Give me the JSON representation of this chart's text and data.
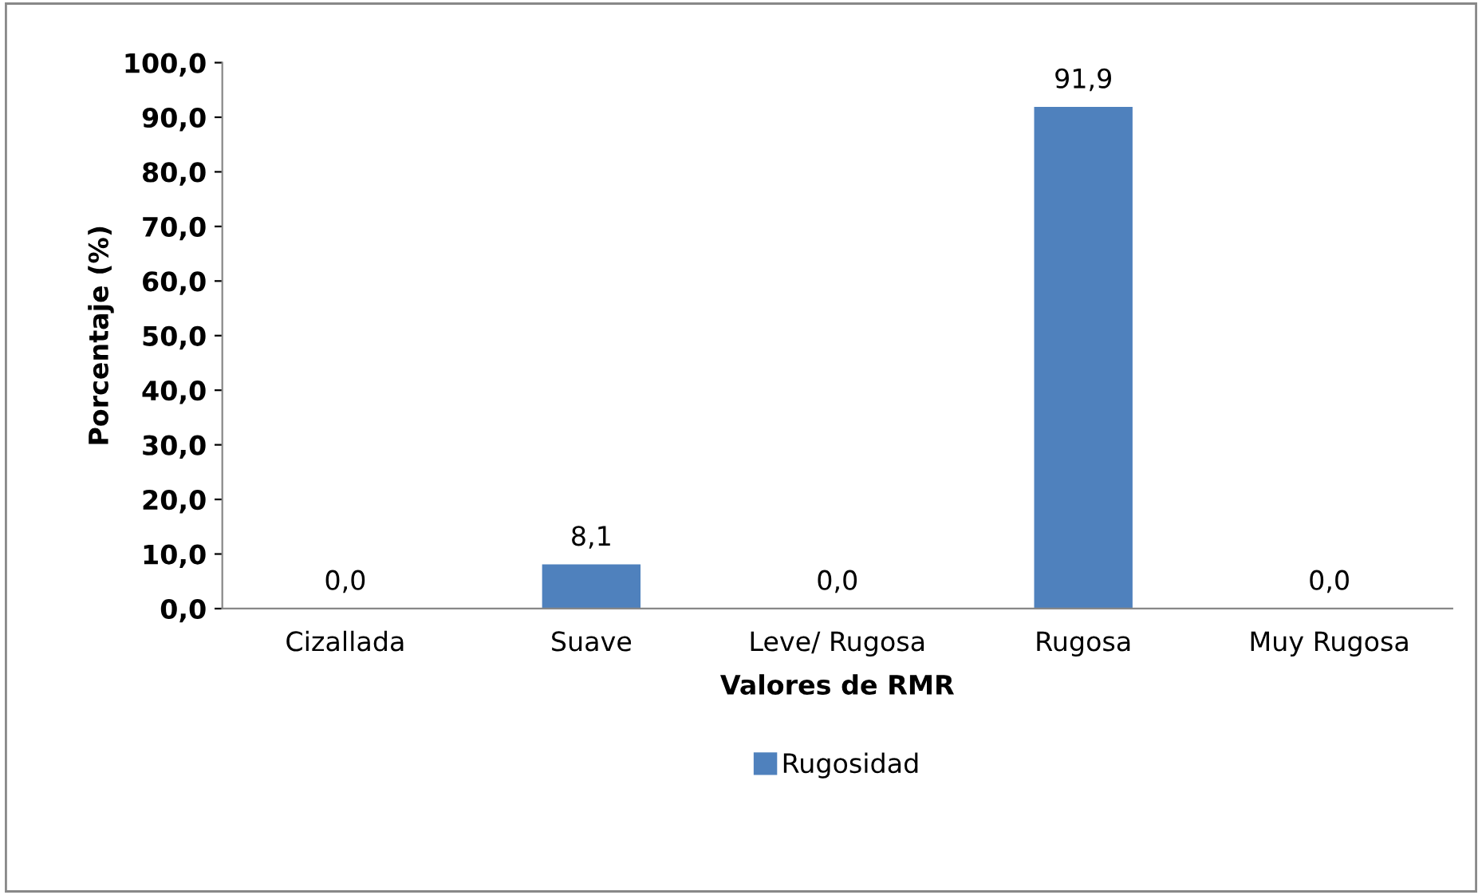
{
  "chart_data": {
    "type": "bar",
    "xlabel": "Valores de RMR",
    "ylabel": "Porcentaje (%)",
    "categories": [
      "Cizallada",
      "Suave",
      "Leve/ Rugosa",
      "Rugosa",
      "Muy Rugosa"
    ],
    "series": [
      {
        "name": "Rugosidad",
        "color": "#4f81bd",
        "values": [
          0.0,
          8.1,
          0.0,
          91.9,
          0.0
        ],
        "value_labels": [
          "0,0",
          "8,1",
          "0,0",
          "91,9",
          "0,0"
        ]
      }
    ],
    "ylim": [
      0,
      100
    ],
    "yticks": [
      {
        "value": 0,
        "label": "0,0"
      },
      {
        "value": 10,
        "label": "10,0"
      },
      {
        "value": 20,
        "label": "20,0"
      },
      {
        "value": 30,
        "label": "30,0"
      },
      {
        "value": 40,
        "label": "40,0"
      },
      {
        "value": 50,
        "label": "50,0"
      },
      {
        "value": 60,
        "label": "60,0"
      },
      {
        "value": 70,
        "label": "70,0"
      },
      {
        "value": 80,
        "label": "80,0"
      },
      {
        "value": 90,
        "label": "90,0"
      },
      {
        "value": 100,
        "label": "100,0"
      }
    ],
    "grid": false,
    "legend": "bottom"
  }
}
